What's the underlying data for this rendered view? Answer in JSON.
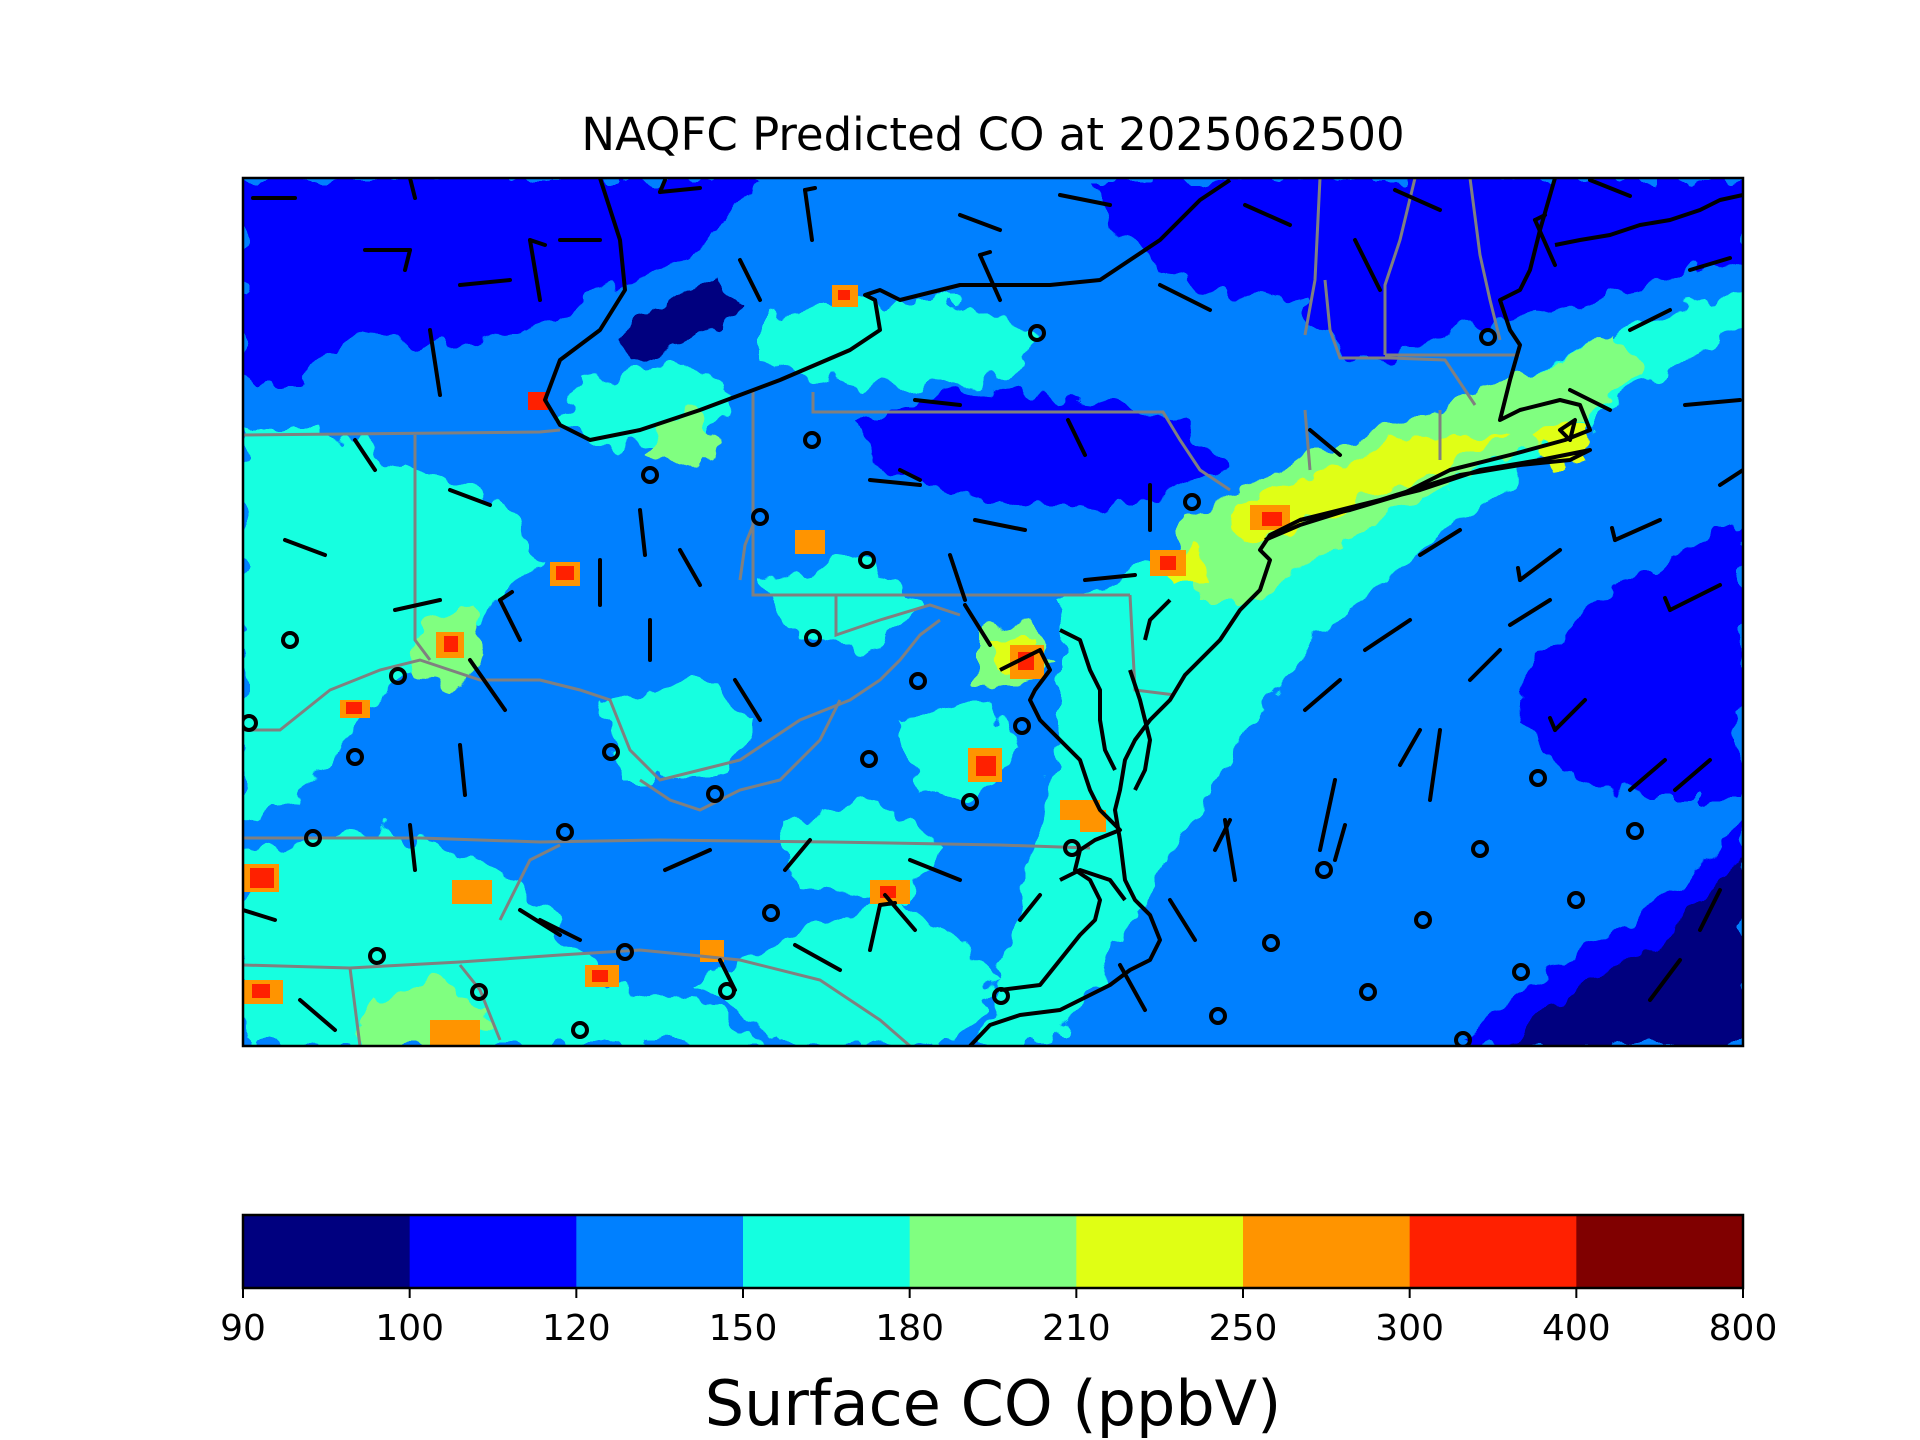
{
  "title": "NAQFC Predicted CO at 2025062500",
  "colorbar": {
    "label": "Surface CO (ppbV)",
    "ticks": [
      "90",
      "100",
      "120",
      "150",
      "180",
      "210",
      "250",
      "300",
      "400",
      "800"
    ],
    "colors": [
      "#00007f",
      "#0000ff",
      "#0080ff",
      "#14ffe0",
      "#80ff80",
      "#e0ff14",
      "#ff9400",
      "#ff2000",
      "#800000"
    ]
  },
  "chart_data": {
    "type": "heatmap",
    "title": "NAQFC Predicted CO at 2025062500",
    "colorbar_label": "Surface CO (ppbV)",
    "levels": [
      90,
      100,
      120,
      150,
      180,
      210,
      250,
      300,
      400,
      800
    ],
    "colormap": "jet",
    "overlays": [
      "wind barbs",
      "coastlines",
      "state boundaries"
    ]
  }
}
